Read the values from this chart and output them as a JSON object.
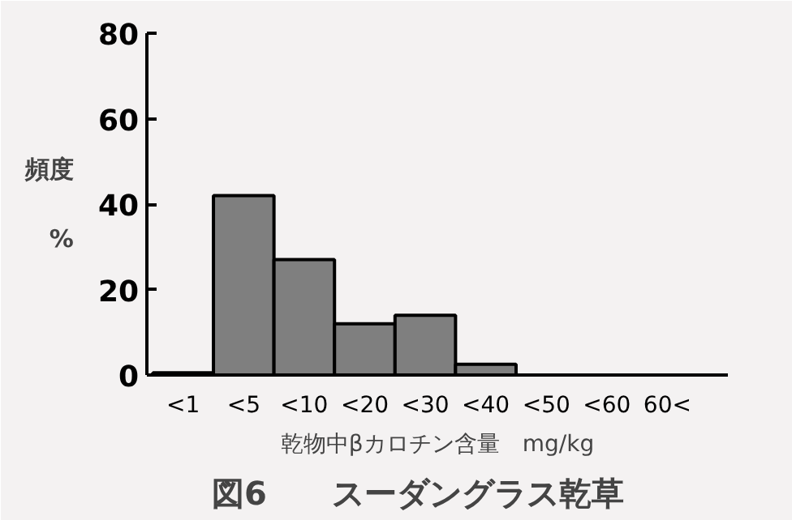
{
  "chart_data": {
    "type": "bar",
    "title": "図6　　スーダングラス乾草",
    "xlabel": "乾物中βカロチン含量　mg/kg",
    "ylabel": "頻度\n\n%",
    "categories": [
      "<1",
      "<5",
      "<10",
      "<20",
      "<30",
      "<40",
      "<50",
      "<60",
      "60<"
    ],
    "values": [
      0.5,
      42,
      27,
      12,
      14,
      2.5,
      0,
      0,
      0
    ],
    "color": "#7f7f7f",
    "ylim": [
      0,
      80
    ],
    "yticks": [
      0,
      20,
      40,
      60,
      80
    ],
    "grid": false
  }
}
